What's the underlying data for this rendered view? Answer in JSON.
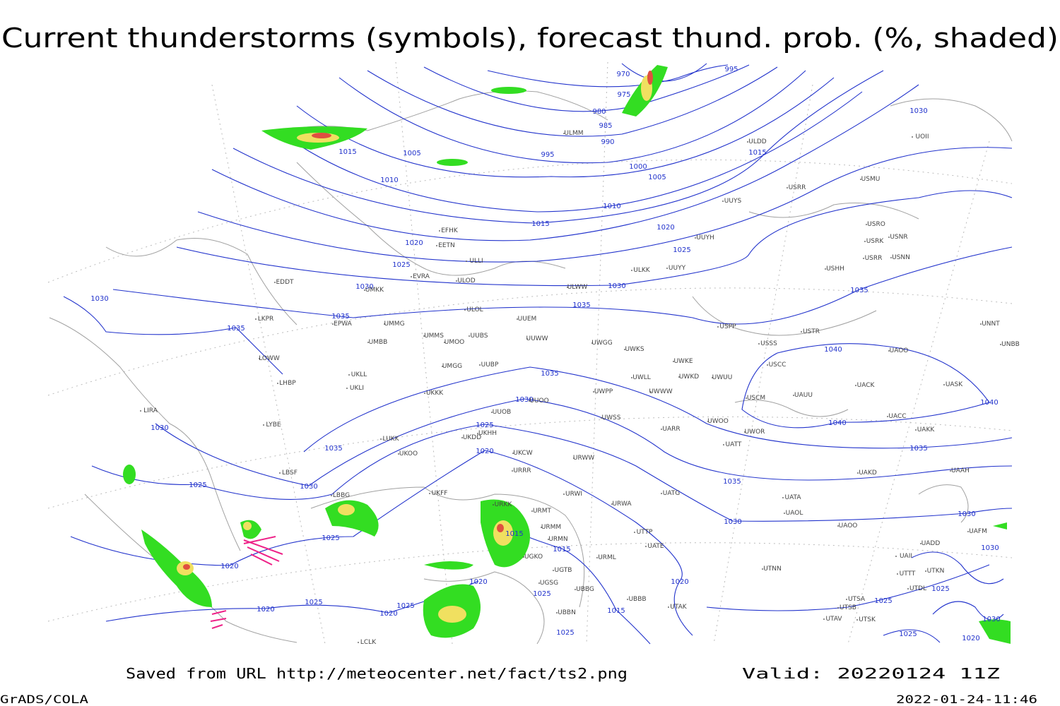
{
  "title": "Current thunderstorms (symbols), forecast thund. prob. (%, shaded)",
  "footer": {
    "source": "Saved from URL http://meteocenter.net/fact/ts2.png",
    "valid": "Valid: 20220124 11Z",
    "software": "GrADS/COLA",
    "timestamp": "2022-01-24-11:46"
  },
  "isobar_labels": [
    970,
    975,
    980,
    985,
    990,
    995,
    995,
    1000,
    1005,
    1010,
    1015,
    1015,
    1015,
    1005,
    1010,
    1020,
    1020,
    1025,
    1025,
    1030,
    1030,
    1030,
    1030,
    1035,
    1035,
    1035,
    1035,
    1035,
    1040,
    1040,
    1040,
    1030,
    1025,
    1020,
    1035,
    1030,
    1030,
    1025,
    1035,
    1035,
    1030,
    1030,
    1015,
    1015,
    1020,
    1025,
    1020,
    1025,
    1025,
    1020,
    1020,
    1020,
    1015,
    1025,
    1025,
    1025,
    1025,
    1030,
    1030,
    1020,
    1025
  ],
  "stations": [
    "ULMM",
    "ULDD",
    "UOII",
    "USRR",
    "USMU",
    "UUYS",
    "UUYH",
    "USRO",
    "USRK",
    "USNR",
    "USRR",
    "USNN",
    "USHH",
    "UUYY",
    "ULKK",
    "ULWW",
    "EFHK",
    "EETN",
    "ULLI",
    "EVRA",
    "ULOD",
    "UMKK",
    "EDDT",
    "ULOL",
    "UUEM",
    "UMMG",
    "EPWA",
    "LKPR",
    "UMBB",
    "UMMS",
    "UMOO",
    "UUBS",
    "UUWW",
    "UWGG",
    "UWKS",
    "UWKE",
    "UWKD",
    "UWUU",
    "UWLL",
    "UWWW",
    "UWPP",
    "USSS",
    "USTR",
    "USPP",
    "USCC",
    "UACK",
    "UAOO",
    "USCM",
    "UAUU",
    "UASK",
    "UNBB",
    "UNNT",
    "LOWW",
    "LHBP",
    "UKLL",
    "UKLI",
    "UMGG",
    "UUBP",
    "UKKK",
    "UUOB",
    "UUOO",
    "UKHH",
    "UKDD",
    "LIRA",
    "LYBE",
    "LUKK",
    "UKOO",
    "UKCW",
    "URRR",
    "URWW",
    "UWSS",
    "UWOR",
    "UWOO",
    "UARR",
    "URWI",
    "UATG",
    "LBSF",
    "LBBG",
    "UKFF",
    "URMT",
    "URKK",
    "URWA",
    "UATA",
    "UAOL",
    "UAOO",
    "UATT",
    "UAKD",
    "UAKK",
    "UACC",
    "UAAH",
    "UAFM",
    "UADD",
    "UAII",
    "UTTT",
    "UTKN",
    "UTAK",
    "UTNN",
    "UTDL",
    "UTSA",
    "UTSB",
    "UTAV",
    "UTSK",
    "URMM",
    "URMN",
    "UGKO",
    "UGSG",
    "UBBG",
    "UBBN",
    "UBBB",
    "URML",
    "UTTP",
    "UATE",
    "UGTB",
    "LCLK"
  ]
}
